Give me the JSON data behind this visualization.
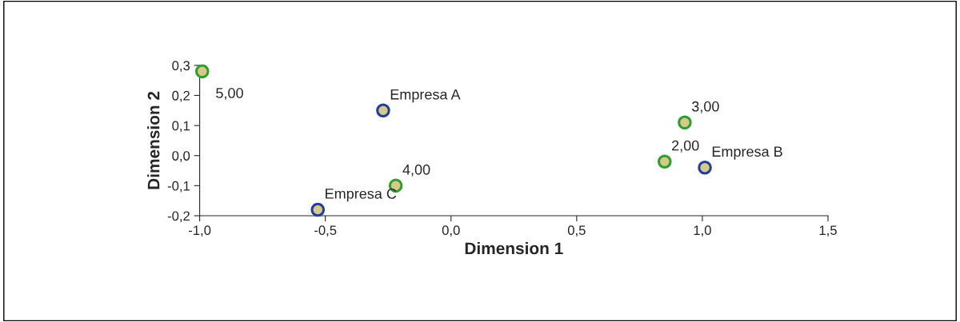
{
  "chart_data": {
    "type": "scatter",
    "xlabel": "Dimension 1",
    "ylabel": "Dimension 2",
    "series": [
      {
        "color": "#2ca02c",
        "x": [
          -0.99,
          0.93,
          0.85,
          -0.22
        ],
        "values": [
          0.28,
          0.11,
          -0.02,
          -0.1
        ]
      },
      {
        "color": "#1f3f9f",
        "x": [
          -0.27,
          1.01,
          -0.53
        ],
        "values": [
          0.15,
          -0.04,
          -0.18
        ]
      }
    ],
    "annotations": [
      {
        "text": "5,00",
        "x": -0.99,
        "y": 0.28
      },
      {
        "text": "Empresa A",
        "x": -0.27,
        "y": 0.15
      },
      {
        "text": "3,00",
        "x": 0.93,
        "y": 0.11
      },
      {
        "text": "2,00",
        "x": 0.85,
        "y": -0.02
      },
      {
        "text": "Empresa B",
        "x": 1.01,
        "y": -0.04
      },
      {
        "text": "4,00",
        "x": -0.22,
        "y": -0.1
      },
      {
        "text": "Empresa C",
        "x": -0.53,
        "y": -0.18
      }
    ],
    "xlim": [
      -1.0,
      1.5
    ],
    "xticks": [
      {
        "value": -1.0,
        "label": "-1,0"
      },
      {
        "value": -0.5,
        "label": "-0,5"
      },
      {
        "value": 0.0,
        "label": "0,0"
      },
      {
        "value": 0.5,
        "label": "0,5"
      },
      {
        "value": 1.0,
        "label": "1,0"
      },
      {
        "value": 1.5,
        "label": "1,5"
      }
    ],
    "ylim": [
      -0.2,
      0.3
    ],
    "yticks": [
      {
        "value": -0.2,
        "label": "-0,2"
      },
      {
        "value": -0.1,
        "label": "-0,1"
      },
      {
        "value": 0.0,
        "label": "0,0"
      },
      {
        "value": 0.1,
        "label": "0,1"
      },
      {
        "value": 0.2,
        "label": "0,2"
      },
      {
        "value": 0.3,
        "label": "0,3"
      }
    ],
    "marker": "circle",
    "grid": false,
    "legend": false
  }
}
